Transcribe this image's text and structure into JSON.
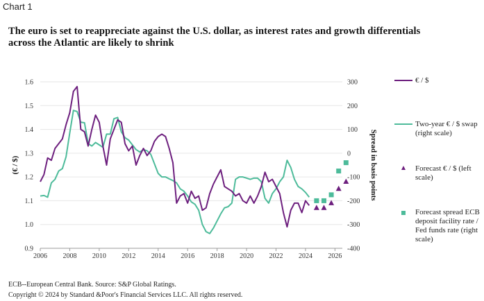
{
  "header": {
    "chart_label": "Chart 1",
    "title": "The euro is set to reappreciate against the U.S. dollar, as interest rates and growth differentials across the Atlantic are likely to shrink"
  },
  "footer": {
    "note": "ECB--European Central Bank. Source: S&P Global Ratings.",
    "copyright": "Copyright © 2024 by Standard &Poor's Financial Services LLC. All rights reserved."
  },
  "colors": {
    "eurusd": "#6d1f7e",
    "swap": "#4dbb9a",
    "grid": "#e6e6e6",
    "axis": "#999999"
  },
  "chart_data": {
    "type": "line",
    "title": "The euro is set to reappreciate against the U.S. dollar, as interest rates and growth differentials across the Atlantic are likely to shrink",
    "xlabel": "",
    "ylabel": "(€ / $)",
    "y2label": "Spread in basis points",
    "xlim": [
      2006,
      2027
    ],
    "ylim": [
      0.9,
      1.6
    ],
    "y2lim": [
      -400,
      300
    ],
    "x_ticks": [
      "2006",
      "2008",
      "2010",
      "2012",
      "2014",
      "2016",
      "2018",
      "2020",
      "2022",
      "2024",
      "2026"
    ],
    "y_ticks": [
      "0.9",
      "1.0",
      "1.1",
      "1.2",
      "1.3",
      "1.4",
      "1.5",
      "1.6"
    ],
    "y2_ticks": [
      "-400",
      "-300",
      "-200",
      "-100",
      "0",
      "100",
      "200",
      "300"
    ],
    "grid": true,
    "legend_position": "right",
    "legend": [
      {
        "label": "€ / $",
        "kind": "line"
      },
      {
        "label": "Two-year € / $ swap (right scale)",
        "kind": "line"
      },
      {
        "label": "Forecast € / $ (left scale)",
        "kind": "triangle"
      },
      {
        "label": "Forecast spread ECB deposit facility rate / Fed funds rate (right scale)",
        "kind": "square"
      }
    ],
    "series": [
      {
        "name": "€ / $",
        "axis": "left",
        "x": [
          2006.0,
          2006.25,
          2006.5,
          2006.75,
          2007.0,
          2007.25,
          2007.5,
          2007.75,
          2008.0,
          2008.25,
          2008.5,
          2008.75,
          2009.0,
          2009.25,
          2009.5,
          2009.75,
          2010.0,
          2010.25,
          2010.5,
          2010.75,
          2011.0,
          2011.25,
          2011.5,
          2011.75,
          2012.0,
          2012.25,
          2012.5,
          2012.75,
          2013.0,
          2013.25,
          2013.5,
          2013.75,
          2014.0,
          2014.25,
          2014.5,
          2014.75,
          2015.0,
          2015.25,
          2015.5,
          2015.75,
          2016.0,
          2016.25,
          2016.5,
          2016.75,
          2017.0,
          2017.25,
          2017.5,
          2017.75,
          2018.0,
          2018.25,
          2018.5,
          2018.75,
          2019.0,
          2019.25,
          2019.5,
          2019.75,
          2020.0,
          2020.25,
          2020.5,
          2020.75,
          2021.0,
          2021.25,
          2021.5,
          2021.75,
          2022.0,
          2022.25,
          2022.5,
          2022.75,
          2023.0,
          2023.25,
          2023.5,
          2023.75,
          2024.0,
          2024.25
        ],
        "values": [
          1.18,
          1.21,
          1.28,
          1.27,
          1.32,
          1.34,
          1.36,
          1.42,
          1.47,
          1.56,
          1.58,
          1.4,
          1.39,
          1.33,
          1.4,
          1.46,
          1.43,
          1.33,
          1.25,
          1.36,
          1.4,
          1.44,
          1.43,
          1.34,
          1.31,
          1.33,
          1.25,
          1.29,
          1.32,
          1.29,
          1.31,
          1.35,
          1.37,
          1.38,
          1.37,
          1.32,
          1.26,
          1.09,
          1.12,
          1.13,
          1.09,
          1.14,
          1.11,
          1.12,
          1.06,
          1.07,
          1.13,
          1.17,
          1.2,
          1.23,
          1.16,
          1.15,
          1.14,
          1.12,
          1.13,
          1.1,
          1.09,
          1.12,
          1.09,
          1.12,
          1.16,
          1.22,
          1.18,
          1.19,
          1.16,
          1.13,
          1.05,
          0.99,
          1.06,
          1.09,
          1.09,
          1.05,
          1.1,
          1.08
        ]
      },
      {
        "name": "Two-year € / $ swap",
        "axis": "right",
        "x": [
          2006.0,
          2006.25,
          2006.5,
          2006.75,
          2007.0,
          2007.25,
          2007.5,
          2007.75,
          2008.0,
          2008.25,
          2008.5,
          2008.75,
          2009.0,
          2009.25,
          2009.5,
          2009.75,
          2010.0,
          2010.25,
          2010.5,
          2010.75,
          2011.0,
          2011.25,
          2011.5,
          2011.75,
          2012.0,
          2012.25,
          2012.5,
          2012.75,
          2013.0,
          2013.25,
          2013.5,
          2013.75,
          2014.0,
          2014.25,
          2014.5,
          2014.75,
          2015.0,
          2015.25,
          2015.5,
          2015.75,
          2016.0,
          2016.25,
          2016.5,
          2016.75,
          2017.0,
          2017.25,
          2017.5,
          2017.75,
          2018.0,
          2018.25,
          2018.5,
          2018.75,
          2019.0,
          2019.25,
          2019.5,
          2019.75,
          2020.0,
          2020.25,
          2020.5,
          2020.75,
          2021.0,
          2021.25,
          2021.5,
          2021.75,
          2022.0,
          2022.25,
          2022.5,
          2022.75,
          2023.0,
          2023.25,
          2023.5,
          2023.75,
          2024.0,
          2024.25
        ],
        "values": [
          -180,
          -178,
          -185,
          -125,
          -110,
          -75,
          -65,
          -15,
          85,
          180,
          175,
          130,
          128,
          40,
          30,
          45,
          35,
          25,
          80,
          80,
          145,
          150,
          90,
          65,
          55,
          35,
          15,
          5,
          15,
          10,
          -5,
          -45,
          -85,
          -100,
          -100,
          -108,
          -115,
          -125,
          -150,
          -160,
          -180,
          -205,
          -215,
          -240,
          -300,
          -330,
          -338,
          -315,
          -285,
          -255,
          -230,
          -225,
          -210,
          -110,
          -100,
          -100,
          -105,
          -110,
          -105,
          -105,
          -120,
          -190,
          -210,
          -170,
          -150,
          -120,
          -100,
          -30,
          -60,
          -110,
          -140,
          -150,
          -165,
          -185
        ]
      },
      {
        "name": "Forecast € / $",
        "axis": "left",
        "marker": "triangle",
        "x": [
          2024.75,
          2025.25,
          2025.75,
          2026.25,
          2026.75
        ],
        "values": [
          1.07,
          1.07,
          1.09,
          1.15,
          1.18
        ]
      },
      {
        "name": "Forecast spread ECB deposit facility rate / Fed funds rate",
        "axis": "right",
        "marker": "square",
        "x": [
          2024.75,
          2025.25,
          2025.75,
          2026.25,
          2026.75
        ],
        "values": [
          -200,
          -200,
          -175,
          -75,
          -40
        ]
      }
    ]
  }
}
